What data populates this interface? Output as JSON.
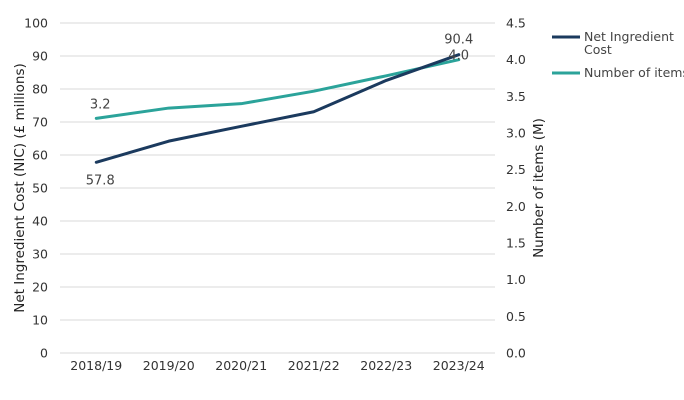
{
  "chart_data": {
    "type": "line",
    "categories": [
      "2018/19",
      "2019/20",
      "2020/21",
      "2021/22",
      "2022/23",
      "2023/24"
    ],
    "left_axis": {
      "label": "Net Ingredient Cost (NIC) (£ millions)",
      "ylim": [
        0,
        100
      ],
      "ticks": [
        "0",
        "10",
        "20",
        "30",
        "40",
        "50",
        "60",
        "70",
        "80",
        "90",
        "100"
      ]
    },
    "right_axis": {
      "label": "Number of items (M)",
      "ylim": [
        0,
        4.5
      ],
      "ticks": [
        "0.0",
        "0.5",
        "1.0",
        "1.5",
        "2.0",
        "2.5",
        "3.0",
        "3.5",
        "4.0",
        "4.5"
      ]
    },
    "series": [
      {
        "name": "Net Ingredient Cost",
        "legend_lines": [
          "Net Ingredient",
          "Cost"
        ],
        "axis": "left",
        "color": "#1b3a5e",
        "values": [
          57.8,
          64.2,
          68.7,
          73.1,
          82.6,
          90.4
        ],
        "data_labels": [
          {
            "index": 0,
            "text": "57.8",
            "position": "below"
          },
          {
            "index": 5,
            "text": "90.4",
            "position": "above"
          }
        ]
      },
      {
        "name": "Number of items",
        "legend_lines": [
          "Number of items"
        ],
        "axis": "right",
        "color": "#2ba39a",
        "values": [
          3.2,
          3.34,
          3.4,
          3.57,
          3.78,
          4.0
        ],
        "data_labels": [
          {
            "index": 0,
            "text": "3.2",
            "position": "above"
          },
          {
            "index": 5,
            "text": "4.0",
            "position": "above"
          }
        ]
      }
    ],
    "grid": true,
    "legend": "right"
  }
}
